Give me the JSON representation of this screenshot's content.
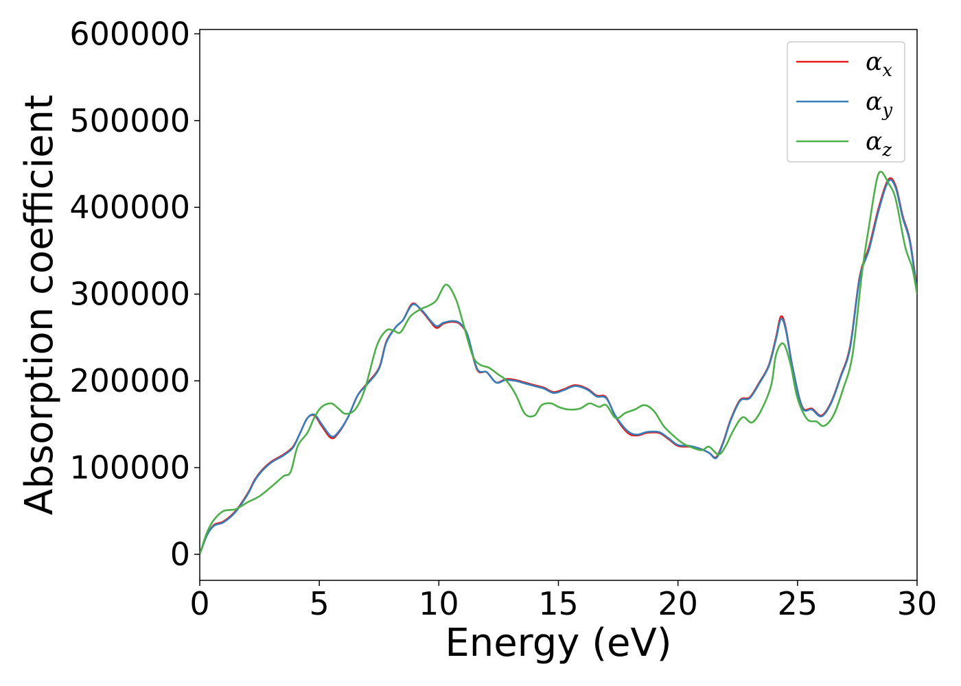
{
  "chart_data": {
    "type": "line",
    "title": "",
    "xlabel": "Energy (eV)",
    "ylabel": "Absorption coefficient",
    "xlim": [
      0,
      30
    ],
    "ylim": [
      -30000,
      605000
    ],
    "xticks": [
      0,
      5,
      10,
      15,
      20,
      25,
      30
    ],
    "xtick_labels": [
      "0",
      "5",
      "10",
      "15",
      "20",
      "25",
      "30"
    ],
    "yticks": [
      0,
      100000,
      200000,
      300000,
      400000,
      500000,
      600000
    ],
    "ytick_labels": [
      "0",
      "100000",
      "200000",
      "300000",
      "400000",
      "500000",
      "600000"
    ],
    "grid": false,
    "legend_position": "top-right",
    "series": [
      {
        "name": "x",
        "label_symbol": "α",
        "label_subscript": "x",
        "color": "#e41a1c",
        "points": [
          [
            0,
            0
          ],
          [
            0.3,
            22000
          ],
          [
            0.6,
            34000
          ],
          [
            1,
            38000
          ],
          [
            1.5,
            50000
          ],
          [
            2,
            70000
          ],
          [
            2.3,
            86000
          ],
          [
            2.6,
            97000
          ],
          [
            3,
            107000
          ],
          [
            3.5,
            115000
          ],
          [
            3.9,
            124000
          ],
          [
            4.2,
            140000
          ],
          [
            4.5,
            157000
          ],
          [
            4.8,
            160000
          ],
          [
            5.1,
            148000
          ],
          [
            5.5,
            134000
          ],
          [
            5.8,
            140000
          ],
          [
            6.2,
            158000
          ],
          [
            6.6,
            183000
          ],
          [
            7,
            197000
          ],
          [
            7.5,
            215000
          ],
          [
            7.8,
            245000
          ],
          [
            8.2,
            262000
          ],
          [
            8.5,
            270000
          ],
          [
            8.9,
            289000
          ],
          [
            9.3,
            280000
          ],
          [
            9.6,
            270000
          ],
          [
            9.9,
            261000
          ],
          [
            10.2,
            266000
          ],
          [
            10.6,
            268000
          ],
          [
            10.9,
            265000
          ],
          [
            11.2,
            252000
          ],
          [
            11.6,
            213000
          ],
          [
            12,
            210000
          ],
          [
            12.4,
            198000
          ],
          [
            12.8,
            202000
          ],
          [
            13.2,
            201000
          ],
          [
            13.6,
            198000
          ],
          [
            14,
            195000
          ],
          [
            14.4,
            192000
          ],
          [
            14.8,
            187000
          ],
          [
            15.2,
            190000
          ],
          [
            15.7,
            195000
          ],
          [
            16.2,
            191000
          ],
          [
            16.6,
            183000
          ],
          [
            17,
            181000
          ],
          [
            17.4,
            158000
          ],
          [
            17.9,
            140000
          ],
          [
            18.3,
            137000
          ],
          [
            18.7,
            140000
          ],
          [
            19.2,
            140000
          ],
          [
            19.6,
            133000
          ],
          [
            20,
            125000
          ],
          [
            20.5,
            124000
          ],
          [
            20.9,
            122000
          ],
          [
            21.3,
            117000
          ],
          [
            21.6,
            112000
          ],
          [
            21.9,
            130000
          ],
          [
            22.2,
            155000
          ],
          [
            22.6,
            178000
          ],
          [
            23,
            181000
          ],
          [
            23.4,
            198000
          ],
          [
            23.8,
            218000
          ],
          [
            24.1,
            250000
          ],
          [
            24.3,
            274000
          ],
          [
            24.5,
            262000
          ],
          [
            24.8,
            215000
          ],
          [
            25.2,
            170000
          ],
          [
            25.6,
            168000
          ],
          [
            26,
            160000
          ],
          [
            26.4,
            175000
          ],
          [
            26.8,
            205000
          ],
          [
            27.2,
            240000
          ],
          [
            27.6,
            320000
          ],
          [
            28,
            355000
          ],
          [
            28.4,
            400000
          ],
          [
            28.8,
            432000
          ],
          [
            29.1,
            425000
          ],
          [
            29.4,
            390000
          ],
          [
            29.7,
            362000
          ],
          [
            30,
            305000
          ]
        ]
      },
      {
        "name": "y",
        "label_symbol": "α",
        "label_subscript": "y",
        "color": "#377eb8",
        "points": [
          [
            0,
            0
          ],
          [
            0.3,
            22000
          ],
          [
            0.6,
            33000
          ],
          [
            1,
            37000
          ],
          [
            1.5,
            49000
          ],
          [
            2,
            69000
          ],
          [
            2.3,
            85000
          ],
          [
            2.6,
            96000
          ],
          [
            3,
            106000
          ],
          [
            3.5,
            114000
          ],
          [
            3.9,
            123000
          ],
          [
            4.2,
            140000
          ],
          [
            4.5,
            157000
          ],
          [
            4.8,
            161000
          ],
          [
            5.1,
            150000
          ],
          [
            5.5,
            136000
          ],
          [
            5.8,
            141000
          ],
          [
            6.2,
            158000
          ],
          [
            6.6,
            183000
          ],
          [
            7,
            196000
          ],
          [
            7.5,
            214000
          ],
          [
            7.8,
            244000
          ],
          [
            8.2,
            262000
          ],
          [
            8.5,
            270000
          ],
          [
            8.9,
            288000
          ],
          [
            9.3,
            281000
          ],
          [
            9.6,
            271000
          ],
          [
            9.9,
            263000
          ],
          [
            10.2,
            267000
          ],
          [
            10.6,
            269000
          ],
          [
            10.9,
            266000
          ],
          [
            11.2,
            253000
          ],
          [
            11.6,
            214000
          ],
          [
            12,
            210000
          ],
          [
            12.4,
            198000
          ],
          [
            12.8,
            201000
          ],
          [
            13.2,
            200000
          ],
          [
            13.6,
            197000
          ],
          [
            14,
            194000
          ],
          [
            14.4,
            191000
          ],
          [
            14.8,
            186000
          ],
          [
            15.2,
            189000
          ],
          [
            15.7,
            194000
          ],
          [
            16.2,
            190000
          ],
          [
            16.6,
            182000
          ],
          [
            17,
            180000
          ],
          [
            17.4,
            159000
          ],
          [
            17.9,
            142000
          ],
          [
            18.3,
            138000
          ],
          [
            18.7,
            141000
          ],
          [
            19.2,
            141000
          ],
          [
            19.6,
            134000
          ],
          [
            20,
            126000
          ],
          [
            20.5,
            125000
          ],
          [
            20.9,
            122000
          ],
          [
            21.3,
            117000
          ],
          [
            21.6,
            111000
          ],
          [
            21.9,
            129000
          ],
          [
            22.2,
            154000
          ],
          [
            22.6,
            177000
          ],
          [
            23,
            180000
          ],
          [
            23.4,
            197000
          ],
          [
            23.8,
            217000
          ],
          [
            24.1,
            248000
          ],
          [
            24.3,
            271000
          ],
          [
            24.5,
            260000
          ],
          [
            24.8,
            214000
          ],
          [
            25.2,
            169000
          ],
          [
            25.6,
            167000
          ],
          [
            26,
            159000
          ],
          [
            26.4,
            174000
          ],
          [
            26.8,
            204000
          ],
          [
            27.2,
            238000
          ],
          [
            27.6,
            318000
          ],
          [
            28,
            352000
          ],
          [
            28.4,
            397000
          ],
          [
            28.8,
            430000
          ],
          [
            29.1,
            423000
          ],
          [
            29.4,
            388000
          ],
          [
            29.7,
            360000
          ],
          [
            30,
            302000
          ]
        ]
      },
      {
        "name": "z",
        "label_symbol": "α",
        "label_subscript": "z",
        "color": "#4daf4a",
        "points": [
          [
            0,
            0
          ],
          [
            0.3,
            25000
          ],
          [
            0.6,
            40000
          ],
          [
            1,
            50000
          ],
          [
            1.5,
            52000
          ],
          [
            2,
            60000
          ],
          [
            2.5,
            67000
          ],
          [
            3,
            78000
          ],
          [
            3.5,
            90000
          ],
          [
            3.8,
            95000
          ],
          [
            4.1,
            125000
          ],
          [
            4.5,
            140000
          ],
          [
            4.8,
            158000
          ],
          [
            5.1,
            170000
          ],
          [
            5.5,
            174000
          ],
          [
            5.8,
            168000
          ],
          [
            6.1,
            162000
          ],
          [
            6.5,
            167000
          ],
          [
            6.9,
            190000
          ],
          [
            7.4,
            240000
          ],
          [
            7.8,
            258000
          ],
          [
            8.1,
            258000
          ],
          [
            8.4,
            256000
          ],
          [
            8.8,
            274000
          ],
          [
            9.2,
            282000
          ],
          [
            9.6,
            287000
          ],
          [
            9.9,
            293000
          ],
          [
            10.3,
            311000
          ],
          [
            10.7,
            295000
          ],
          [
            11,
            268000
          ],
          [
            11.4,
            230000
          ],
          [
            11.7,
            219000
          ],
          [
            12.1,
            215000
          ],
          [
            12.5,
            207000
          ],
          [
            12.8,
            201000
          ],
          [
            13.2,
            185000
          ],
          [
            13.6,
            162000
          ],
          [
            14,
            160000
          ],
          [
            14.3,
            172000
          ],
          [
            14.7,
            174000
          ],
          [
            15,
            170000
          ],
          [
            15.4,
            167000
          ],
          [
            15.9,
            168000
          ],
          [
            16.3,
            174000
          ],
          [
            16.7,
            170000
          ],
          [
            17,
            172000
          ],
          [
            17.4,
            157000
          ],
          [
            17.8,
            163000
          ],
          [
            18.2,
            167000
          ],
          [
            18.6,
            172000
          ],
          [
            19,
            165000
          ],
          [
            19.4,
            148000
          ],
          [
            19.8,
            137000
          ],
          [
            20.2,
            128000
          ],
          [
            20.6,
            123000
          ],
          [
            21,
            120000
          ],
          [
            21.3,
            124000
          ],
          [
            21.7,
            115000
          ],
          [
            22,
            125000
          ],
          [
            22.3,
            142000
          ],
          [
            22.7,
            158000
          ],
          [
            23.1,
            152000
          ],
          [
            23.5,
            167000
          ],
          [
            23.9,
            195000
          ],
          [
            24.1,
            230000
          ],
          [
            24.4,
            243000
          ],
          [
            24.7,
            220000
          ],
          [
            25,
            180000
          ],
          [
            25.4,
            156000
          ],
          [
            25.8,
            153000
          ],
          [
            26.1,
            148000
          ],
          [
            26.5,
            160000
          ],
          [
            26.9,
            190000
          ],
          [
            27.3,
            230000
          ],
          [
            27.7,
            325000
          ],
          [
            28,
            380000
          ],
          [
            28.3,
            430000
          ],
          [
            28.5,
            441000
          ],
          [
            28.8,
            428000
          ],
          [
            29.1,
            410000
          ],
          [
            29.5,
            355000
          ],
          [
            29.8,
            330000
          ],
          [
            30,
            300000
          ]
        ]
      }
    ]
  }
}
